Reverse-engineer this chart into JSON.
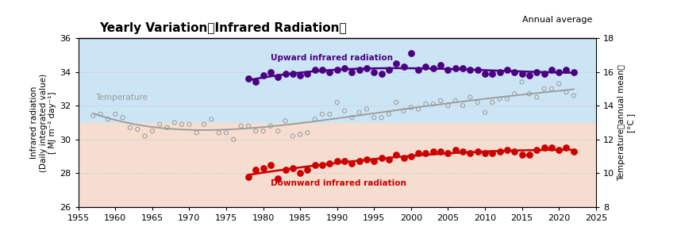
{
  "title": "Yearly Variation（Infrared Radiation）",
  "subtitle": "Annual average",
  "ylabel_left": "Infrared radiation\n(Daily integrated value)\n[ MJ m⁻² day⁻¹]",
  "ylabel_right": "Temperature（annual mean）\n[°C ]",
  "ylim_left": [
    26,
    36
  ],
  "ylim_right": [
    8,
    18
  ],
  "xlim": [
    1955,
    2025
  ],
  "xticks": [
    1955,
    1960,
    1965,
    1970,
    1975,
    1980,
    1985,
    1990,
    1995,
    2000,
    2005,
    2010,
    2015,
    2020,
    2025
  ],
  "yticks_left": [
    26,
    28,
    30,
    32,
    34,
    36
  ],
  "yticks_right": [
    8,
    10,
    12,
    14,
    16,
    18
  ],
  "bg_top_color": "#cce5f5",
  "bg_bottom_color": "#f5ddd0",
  "bg_split": 31.0,
  "upward_color": "#4b0082",
  "downward_color": "#cc0000",
  "temp_color": "#999999",
  "grid_color": "#cccccc",
  "upward_label": "Upward infrared radiation",
  "downward_label": "Downward infrared radiation",
  "temp_label": "Temperature",
  "upward_years": [
    1978,
    1979,
    1980,
    1981,
    1982,
    1983,
    1984,
    1985,
    1986,
    1987,
    1988,
    1989,
    1990,
    1991,
    1992,
    1993,
    1994,
    1995,
    1996,
    1997,
    1998,
    1999,
    2000,
    2001,
    2002,
    2003,
    2004,
    2005,
    2006,
    2007,
    2008,
    2009,
    2010,
    2011,
    2012,
    2013,
    2014,
    2015,
    2016,
    2017,
    2018,
    2019,
    2020,
    2021,
    2022
  ],
  "upward_values": [
    33.6,
    33.4,
    33.8,
    34.0,
    33.7,
    33.9,
    33.9,
    33.8,
    33.9,
    34.1,
    34.1,
    34.0,
    34.1,
    34.2,
    34.0,
    34.1,
    34.2,
    34.0,
    33.9,
    34.1,
    34.5,
    34.3,
    35.1,
    34.1,
    34.3,
    34.2,
    34.4,
    34.1,
    34.2,
    34.2,
    34.1,
    34.1,
    33.9,
    33.9,
    34.0,
    34.1,
    34.0,
    33.9,
    33.8,
    34.0,
    33.9,
    34.1,
    34.0,
    34.1,
    34.0
  ],
  "downward_years": [
    1978,
    1979,
    1980,
    1981,
    1982,
    1983,
    1984,
    1985,
    1986,
    1987,
    1988,
    1989,
    1990,
    1991,
    1992,
    1993,
    1994,
    1995,
    1996,
    1997,
    1998,
    1999,
    2000,
    2001,
    2002,
    2003,
    2004,
    2005,
    2006,
    2007,
    2008,
    2009,
    2010,
    2011,
    2012,
    2013,
    2014,
    2015,
    2016,
    2017,
    2018,
    2019,
    2020,
    2021,
    2022
  ],
  "downward_values": [
    27.8,
    28.2,
    28.3,
    28.5,
    27.7,
    28.2,
    28.3,
    28.0,
    28.2,
    28.5,
    28.5,
    28.6,
    28.7,
    28.7,
    28.6,
    28.7,
    28.8,
    28.7,
    28.9,
    28.8,
    29.1,
    28.9,
    29.0,
    29.2,
    29.2,
    29.3,
    29.3,
    29.2,
    29.4,
    29.3,
    29.2,
    29.3,
    29.2,
    29.2,
    29.3,
    29.4,
    29.3,
    29.1,
    29.1,
    29.4,
    29.5,
    29.5,
    29.4,
    29.5,
    29.3
  ],
  "temp_years": [
    1957,
    1958,
    1959,
    1960,
    1961,
    1962,
    1963,
    1964,
    1965,
    1966,
    1967,
    1968,
    1969,
    1970,
    1971,
    1972,
    1973,
    1974,
    1975,
    1976,
    1977,
    1978,
    1979,
    1980,
    1981,
    1982,
    1983,
    1984,
    1985,
    1986,
    1987,
    1988,
    1989,
    1990,
    1991,
    1992,
    1993,
    1994,
    1995,
    1996,
    1997,
    1998,
    1999,
    2000,
    2001,
    2002,
    2003,
    2004,
    2005,
    2006,
    2007,
    2008,
    2009,
    2010,
    2011,
    2012,
    2013,
    2014,
    2015,
    2016,
    2017,
    2018,
    2019,
    2020,
    2021,
    2022
  ],
  "temp_values": [
    13.4,
    13.5,
    13.2,
    13.5,
    13.3,
    12.7,
    12.6,
    12.2,
    12.5,
    12.9,
    12.7,
    13.0,
    12.9,
    12.9,
    12.4,
    12.9,
    13.2,
    12.4,
    12.4,
    12.0,
    12.8,
    12.8,
    12.5,
    12.5,
    12.8,
    12.5,
    13.1,
    12.2,
    12.3,
    12.4,
    13.2,
    13.5,
    13.5,
    14.2,
    13.7,
    13.3,
    13.6,
    13.8,
    13.3,
    13.3,
    13.5,
    14.2,
    13.7,
    13.9,
    13.8,
    14.1,
    14.1,
    14.3,
    14.0,
    14.3,
    14.0,
    14.5,
    14.2,
    13.6,
    14.2,
    14.4,
    14.4,
    14.7,
    15.4,
    14.7,
    14.5,
    15.0,
    15.0,
    15.3,
    14.8,
    14.6
  ]
}
